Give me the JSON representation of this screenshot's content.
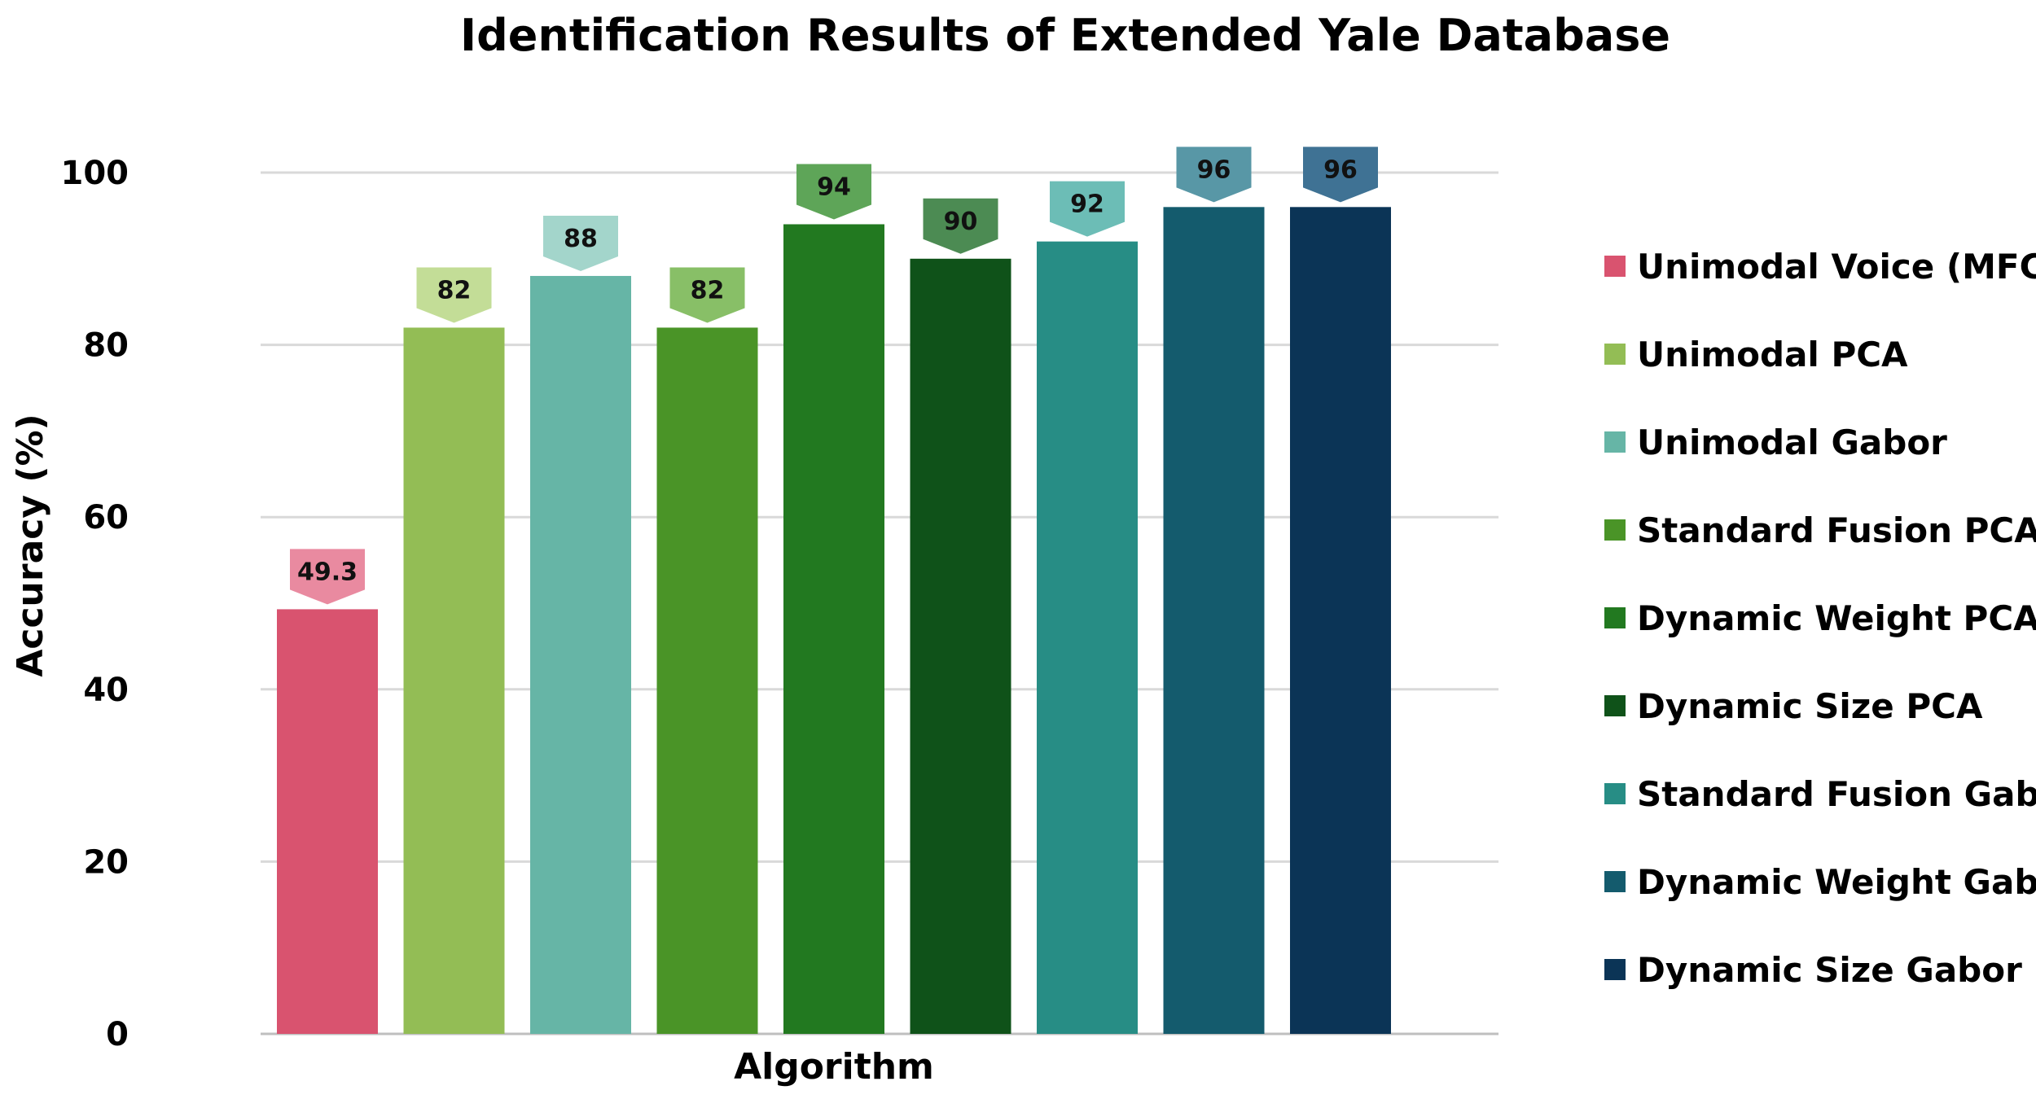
{
  "chart_data": {
    "type": "bar",
    "title": "Identification Results of Extended Yale Database",
    "xlabel": "Algorithm",
    "ylabel": "Accuracy (%)",
    "ylim": [
      0,
      100
    ],
    "yticks": [
      "0",
      "20",
      "40",
      "60",
      "80",
      "100"
    ],
    "grid": true,
    "legend_position": "right",
    "series": [
      {
        "name": "Unimodal Voice (MFCC)",
        "value": 49.3,
        "label": "49.3",
        "color": "#d9536f",
        "label_color": "#e98aa0"
      },
      {
        "name": "Unimodal PCA",
        "value": 82,
        "label": "82",
        "color": "#93bd55",
        "label_color": "#c3dd97"
      },
      {
        "name": "Unimodal Gabor",
        "value": 88,
        "label": "88",
        "color": "#66b5a6",
        "label_color": "#a3d5cb"
      },
      {
        "name": "Standard Fusion PCA",
        "value": 82,
        "label": "82",
        "color": "#4a9427",
        "label_color": "#88bf67"
      },
      {
        "name": "Dynamic Weight PCA",
        "value": 94,
        "label": "94",
        "color": "#227920",
        "label_color": "#5ea558"
      },
      {
        "name": "Dynamic Size PCA",
        "value": 90,
        "label": "90",
        "color": "#0f5219",
        "label_color": "#4c8b53"
      },
      {
        "name": "Standard Fusion Gabor",
        "value": 92,
        "label": "92",
        "color": "#278d85",
        "label_color": "#6cbdb6"
      },
      {
        "name": "Dynamic Weight Gabor",
        "value": 96,
        "label": "96",
        "color": "#145b6d",
        "label_color": "#5897a6"
      },
      {
        "name": "Dynamic Size Gabor",
        "value": 96,
        "label": "96",
        "color": "#0b3456",
        "label_color": "#3f7294"
      }
    ]
  }
}
